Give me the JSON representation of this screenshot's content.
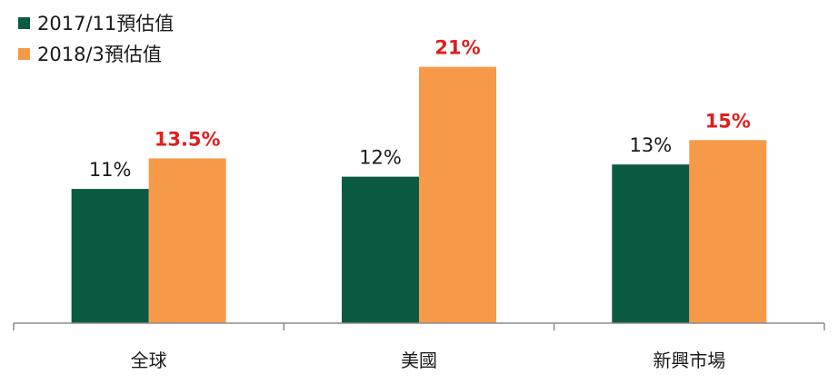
{
  "colors": {
    "series1": "#0b5a42",
    "series2": "#f69a4a",
    "label_series1": "#1a1a1a",
    "label_series2": "#e01e1e",
    "axis": "#8c8c8c"
  },
  "legend": [
    {
      "name": "2017/11預估值"
    },
    {
      "name": "2018/3預估值"
    }
  ],
  "chart_data": {
    "type": "bar",
    "categories": [
      "全球",
      "美國",
      "新興市場"
    ],
    "series": [
      {
        "name": "2017/11預估值",
        "values": [
          11,
          12,
          13
        ],
        "labels": [
          "11%",
          "12%",
          "13%"
        ]
      },
      {
        "name": "2018/3預估值",
        "values": [
          13.5,
          21,
          15
        ],
        "labels": [
          "13.5%",
          "21%",
          "15%"
        ]
      }
    ],
    "title": "",
    "xlabel": "",
    "ylabel": "",
    "ylim": [
      0,
      23.5
    ],
    "grid": false,
    "legend_position": "top-left",
    "y_axis_visible": false
  }
}
